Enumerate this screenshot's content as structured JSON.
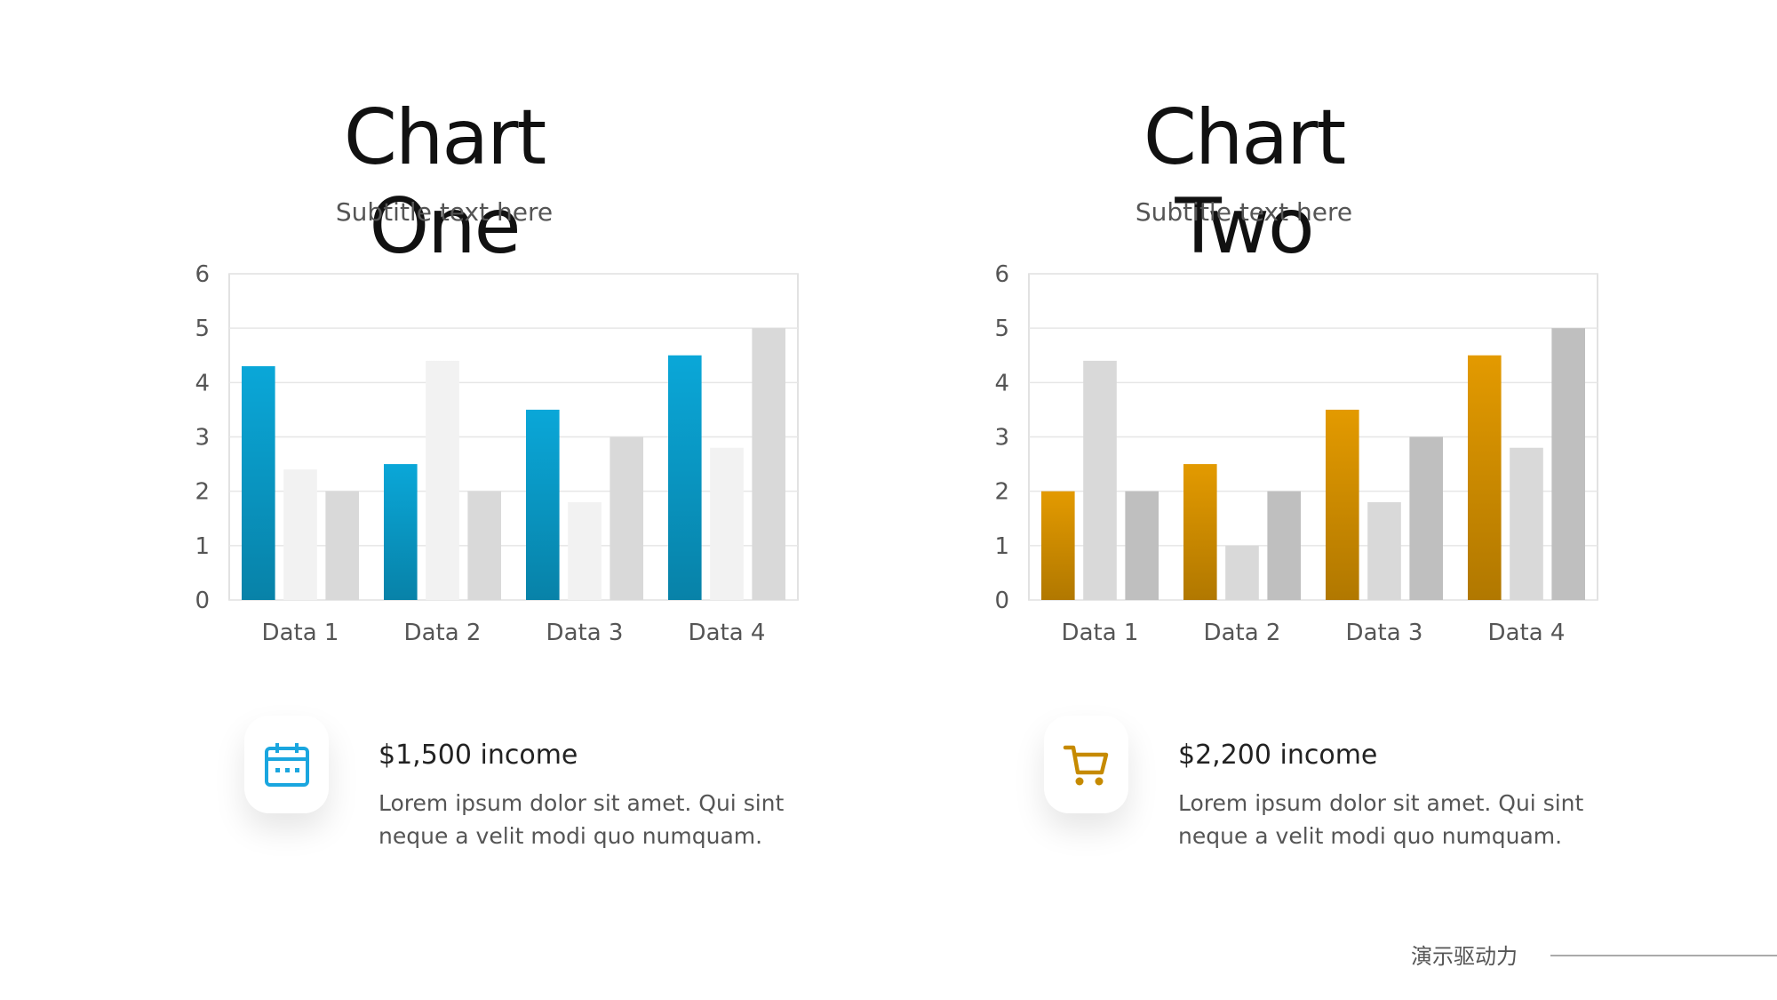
{
  "chart_data": [
    {
      "type": "bar",
      "title": "Chart One",
      "subtitle": "Subtitle text here",
      "categories": [
        "Data 1",
        "Data 2",
        "Data 3",
        "Data 4"
      ],
      "series": [
        {
          "values": [
            4.3,
            2.5,
            3.5,
            4.5
          ],
          "color": "#0aa7d8"
        },
        {
          "values": [
            2.4,
            4.4,
            1.8,
            2.8
          ],
          "color": "#f2f2f2"
        },
        {
          "values": [
            2.0,
            2.0,
            3.0,
            5.0
          ],
          "color": "#d9d9d9"
        }
      ],
      "ylim": [
        0,
        6
      ],
      "yticks": [
        0,
        1,
        2,
        3,
        4,
        5,
        6
      ],
      "grid": true,
      "xlabel": "",
      "ylabel": ""
    },
    {
      "type": "bar",
      "title": "Chart Two",
      "subtitle": "Subtitle text here",
      "categories": [
        "Data 1",
        "Data 2",
        "Data 3",
        "Data 4"
      ],
      "series": [
        {
          "values": [
            2.0,
            2.5,
            3.5,
            4.5
          ],
          "color": "#e39a00"
        },
        {
          "values": [
            4.4,
            1.0,
            1.8,
            2.8
          ],
          "color": "#d9d9d9"
        },
        {
          "values": [
            2.0,
            2.0,
            3.0,
            5.0
          ],
          "color": "#bfbfbf"
        }
      ],
      "ylim": [
        0,
        6
      ],
      "yticks": [
        0,
        1,
        2,
        3,
        4,
        5,
        6
      ],
      "grid": true,
      "xlabel": "",
      "ylabel": ""
    }
  ],
  "panels": [
    {
      "icon": "calendar-icon",
      "icon_color": "#1aa6df",
      "amount": "$1,500 income",
      "description": "Lorem ipsum dolor sit amet. Qui sint neque a velit modi quo numquam."
    },
    {
      "icon": "shopping-cart-icon",
      "icon_color": "#c68a00",
      "amount": "$2,200 income",
      "description": "Lorem ipsum dolor sit amet. Qui sint neque a velit modi quo numquam."
    }
  ],
  "footer": {
    "brand": "演示驱动力"
  }
}
